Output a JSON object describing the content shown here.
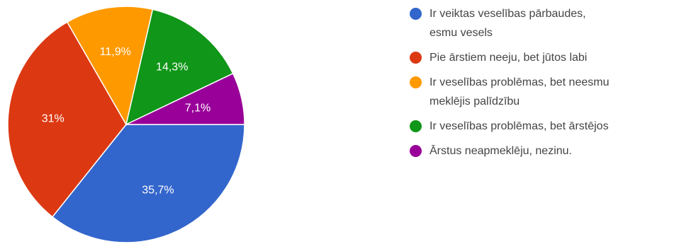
{
  "chart_data": {
    "type": "pie",
    "start_angle_deg": 90,
    "direction": "clockwise",
    "slices": [
      {
        "label": "Ir veiktas veselības pārbaudes, esmu vesels",
        "legend_lines": [
          "Ir veiktas veselības pārbaudes,",
          "esmu vesels"
        ],
        "value": 35.7,
        "display": "35,7%",
        "color": "#3366cc"
      },
      {
        "label": "Pie ārstiem neeju, bet jūtos labi",
        "legend_lines": [
          "Pie ārstiem neeju, bet jūtos labi"
        ],
        "value": 31.0,
        "display": "31%",
        "color": "#dc3912"
      },
      {
        "label": "Ir veselības problēmas, bet neesmu meklējis palīdzību",
        "legend_lines": [
          "Ir veselības problēmas, bet neesmu",
          "meklējis palīdzību"
        ],
        "value": 11.9,
        "display": "11,9%",
        "color": "#ff9900"
      },
      {
        "label": "Ir veselības problēmas, bet ārstējos",
        "legend_lines": [
          "Ir veselības problēmas, bet ārstējos"
        ],
        "value": 14.3,
        "display": "14,3%",
        "color": "#109618"
      },
      {
        "label": "Ārstus neapmeklēju, nezinu.",
        "legend_lines": [
          "Ārstus neapmeklēju, nezinu."
        ],
        "value": 7.1,
        "display": "7,1%",
        "color": "#990099"
      }
    ],
    "legend_position": "right"
  }
}
